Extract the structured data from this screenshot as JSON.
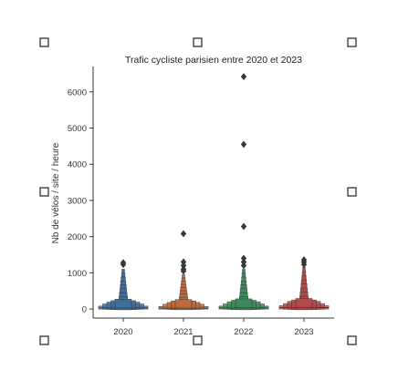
{
  "chart_data": {
    "type": "boxenplot",
    "title": "Trafic cycliste parisien entre 2020 et 2023",
    "xlabel": "",
    "ylabel": "Nb de vélos / site / heure",
    "ylim": [
      -250,
      6700
    ],
    "yticks": [
      0,
      1000,
      2000,
      3000,
      4000,
      5000,
      6000
    ],
    "grid": false,
    "legend": "none",
    "categories": [
      "2020",
      "2021",
      "2022",
      "2023"
    ],
    "series": [
      {
        "category": "2020",
        "color": "#3f6f9a",
        "median": 30,
        "box_levels": [
          [
            0,
            80
          ],
          [
            -5,
            140
          ],
          [
            -10,
            190
          ],
          [
            -15,
            230
          ],
          [
            -20,
            270
          ]
        ],
        "tail_max": 1100,
        "outliers": [
          1230,
          1280
        ]
      },
      {
        "category": "2021",
        "color": "#c06a3c",
        "median": 25,
        "box_levels": [
          [
            0,
            70
          ],
          [
            -5,
            130
          ],
          [
            -10,
            180
          ],
          [
            -15,
            220
          ],
          [
            -20,
            260
          ]
        ],
        "tail_max": 950,
        "outliers": [
          1050,
          1100,
          1200,
          1300,
          2080
        ]
      },
      {
        "category": "2022",
        "color": "#3d8a5a",
        "median": 30,
        "box_levels": [
          [
            0,
            80
          ],
          [
            -5,
            140
          ],
          [
            -10,
            200
          ],
          [
            -15,
            240
          ],
          [
            -20,
            280
          ]
        ],
        "tail_max": 1100,
        "outliers": [
          1200,
          1300,
          1400,
          2280,
          4550,
          6420
        ]
      },
      {
        "category": "2023",
        "color": "#b04a4a",
        "median": 40,
        "box_levels": [
          [
            0,
            90
          ],
          [
            -5,
            150
          ],
          [
            -10,
            210
          ],
          [
            -15,
            250
          ],
          [
            -20,
            290
          ]
        ],
        "tail_max": 1150,
        "outliers": [
          1230,
          1300,
          1360
        ]
      }
    ]
  }
}
